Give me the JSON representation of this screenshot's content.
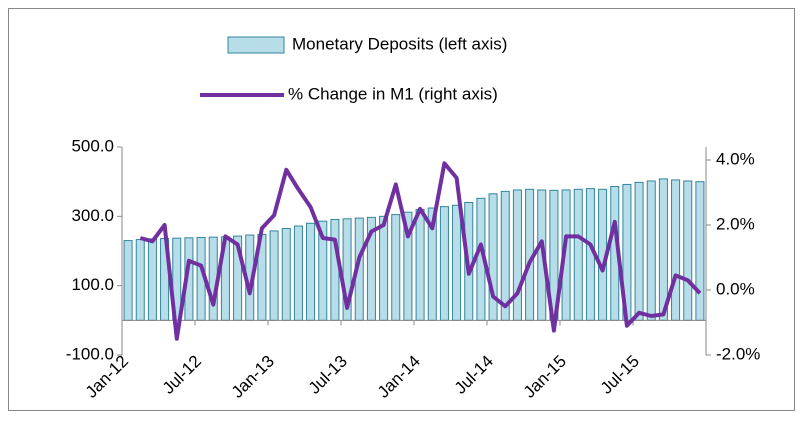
{
  "chart_data": {
    "type": "bar-line",
    "categories": [
      "Jan-12",
      null,
      null,
      null,
      null,
      null,
      "Jul-12",
      null,
      null,
      null,
      null,
      null,
      "Jan-13",
      null,
      null,
      null,
      null,
      null,
      "Jul-13",
      null,
      null,
      null,
      null,
      null,
      "Jan-14",
      null,
      null,
      null,
      null,
      null,
      "Jul-14",
      null,
      null,
      null,
      null,
      null,
      "Jan-15",
      null,
      null,
      null,
      null,
      null,
      "Jul-15",
      null,
      null,
      null,
      null,
      null
    ],
    "series": [
      {
        "name": "Monetary Deposits (left axis)",
        "type": "bar",
        "axis": "y",
        "color": "#b7dee8",
        "edge": "#31859c",
        "values": [
          230,
          233,
          235,
          236,
          237,
          238,
          239,
          240,
          241,
          243,
          246,
          248,
          258,
          265,
          272,
          280,
          286,
          291,
          293,
          295,
          297,
          300,
          305,
          312,
          320,
          324,
          328,
          332,
          340,
          352,
          365,
          372,
          376,
          378,
          376,
          375,
          376,
          378,
          380,
          378,
          386,
          392,
          398,
          402,
          408,
          405,
          402,
          400
        ]
      },
      {
        "name": "% Change in M1 (right axis)",
        "type": "line",
        "axis": "y2",
        "color": "#7030a0",
        "values": [
          null,
          1.6,
          1.5,
          2.0,
          -1.5,
          0.9,
          0.75,
          -0.45,
          1.65,
          1.4,
          -0.1,
          1.9,
          2.3,
          3.7,
          3.1,
          2.55,
          1.6,
          1.55,
          -0.55,
          1.0,
          1.8,
          2.0,
          3.25,
          1.65,
          2.5,
          1.9,
          3.9,
          3.45,
          0.5,
          1.4,
          -0.2,
          -0.5,
          -0.1,
          0.85,
          1.5,
          -1.25,
          1.65,
          1.65,
          1.4,
          0.6,
          2.1,
          -1.1,
          -0.7,
          -0.8,
          -0.75,
          0.45,
          0.3,
          -0.1
        ]
      }
    ],
    "ylim": [
      -100,
      500
    ],
    "yticks": [
      {
        "value": -100,
        "label": "-100.0"
      },
      {
        "value": 100,
        "label": "100.0"
      },
      {
        "value": 300,
        "label": "300.0"
      },
      {
        "value": 500,
        "label": "500.0"
      }
    ],
    "y2lim": [
      -2,
      4
    ],
    "y2ticks": [
      {
        "value": -2,
        "label": "-2.0%"
      },
      {
        "value": 0,
        "label": "0.0%"
      },
      {
        "value": 2,
        "label": "2.0%"
      },
      {
        "value": 4,
        "label": "4.0%"
      }
    ],
    "grid": false,
    "legend": "top"
  }
}
